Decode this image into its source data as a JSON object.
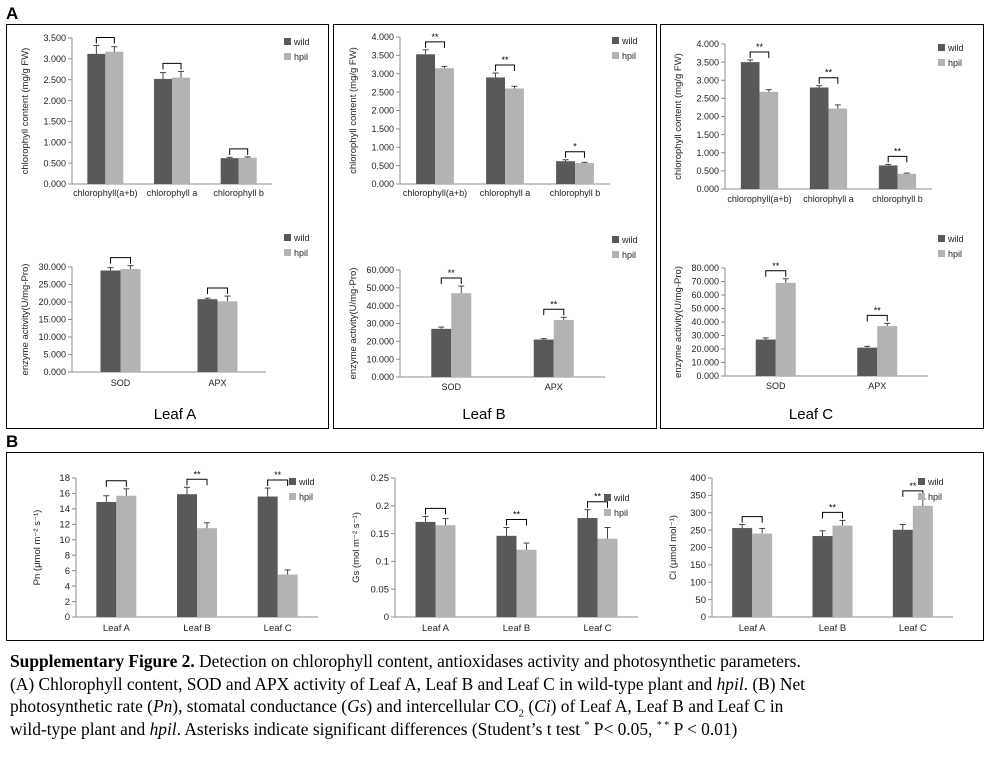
{
  "panel_labels": {
    "a": "A",
    "b": "B"
  },
  "leaf_titles": [
    "Leaf A",
    "Leaf B",
    "Leaf C"
  ],
  "colors": {
    "wild": "#595959",
    "hpil": "#b3b3b3",
    "axis": "#8c8c8c",
    "frame": "#000000"
  },
  "chart_data": [
    {
      "id": "chl-leafA",
      "type": "bar",
      "categories": [
        "chlorophyll(a+b)",
        "chlorophyll a",
        "chlorophyll b"
      ],
      "ylabel": "chlorophyll content (mg/g FW)",
      "ylim": [
        0,
        3.5
      ],
      "yticks": [
        "0.000",
        "0.500",
        "1.000",
        "1.500",
        "2.000",
        "2.500",
        "3.000",
        "3.500"
      ],
      "series": [
        {
          "name": "wild",
          "values": [
            3.12,
            2.52,
            0.62
          ],
          "errors": [
            0.2,
            0.15,
            0.02
          ]
        },
        {
          "name": "hpil",
          "values": [
            3.17,
            2.55,
            0.63
          ],
          "errors": [
            0.12,
            0.15,
            0.02
          ]
        }
      ],
      "significance": [
        "",
        "",
        ""
      ],
      "legend": "top-right"
    },
    {
      "id": "enz-leafA",
      "type": "bar",
      "categories": [
        "SOD",
        "APX"
      ],
      "ylabel": "enzyme activity(U/mg-Pro)",
      "ylim": [
        0,
        30
      ],
      "yticks": [
        "0.000",
        "5.000",
        "10.000",
        "15.000",
        "20.000",
        "25.000",
        "30.000"
      ],
      "series": [
        {
          "name": "wild",
          "values": [
            29.0,
            20.8
          ],
          "errors": [
            0.8,
            0.3
          ]
        },
        {
          "name": "hpil",
          "values": [
            29.4,
            20.2
          ],
          "errors": [
            1.0,
            1.5
          ]
        }
      ],
      "significance": [
        "",
        ""
      ],
      "legend": "top-right"
    },
    {
      "id": "chl-leafB",
      "type": "bar",
      "categories": [
        "chlorophyll(a+b)",
        "chlorophyll a",
        "chlorophyll b"
      ],
      "ylabel": "chlorophyll content (mg/g FW)",
      "ylim": [
        0,
        4
      ],
      "yticks": [
        "0.000",
        "0.500",
        "1.000",
        "1.500",
        "2.000",
        "2.500",
        "3.000",
        "3.500",
        "4.000"
      ],
      "series": [
        {
          "name": "wild",
          "values": [
            3.53,
            2.9,
            0.62
          ],
          "errors": [
            0.12,
            0.12,
            0.04
          ]
        },
        {
          "name": "hpil",
          "values": [
            3.15,
            2.6,
            0.57
          ],
          "errors": [
            0.05,
            0.06,
            0.02
          ]
        }
      ],
      "significance": [
        "**",
        "**",
        "*"
      ],
      "legend": "top-right"
    },
    {
      "id": "enz-leafB",
      "type": "bar",
      "categories": [
        "SOD",
        "APX"
      ],
      "ylabel": "enzyme activity(U/mg-Pro)",
      "ylim": [
        0,
        60
      ],
      "yticks": [
        "0.000",
        "10.000",
        "20.000",
        "30.000",
        "40.000",
        "50.000",
        "60.000"
      ],
      "series": [
        {
          "name": "wild",
          "values": [
            27.0,
            21.0
          ],
          "errors": [
            1.0,
            0.5
          ]
        },
        {
          "name": "hpil",
          "values": [
            47.0,
            32.0
          ],
          "errors": [
            4.0,
            1.5
          ]
        }
      ],
      "significance": [
        "**",
        "**"
      ],
      "legend": "top-right"
    },
    {
      "id": "chl-leafC",
      "type": "bar",
      "categories": [
        "chlorophyll(a+b)",
        "chlorophyll a",
        "chlorophyll b"
      ],
      "ylabel": "chlorophyll content (mg/g FW)",
      "ylim": [
        0,
        4
      ],
      "yticks": [
        "0.000",
        "0.500",
        "1.000",
        "1.500",
        "2.000",
        "2.500",
        "3.000",
        "3.500",
        "4.000"
      ],
      "series": [
        {
          "name": "wild",
          "values": [
            3.5,
            2.8,
            0.65
          ],
          "errors": [
            0.06,
            0.05,
            0.03
          ]
        },
        {
          "name": "hpil",
          "values": [
            2.68,
            2.22,
            0.42
          ],
          "errors": [
            0.06,
            0.1,
            0.02
          ]
        }
      ],
      "significance": [
        "**",
        "**",
        "**"
      ],
      "legend": "top-right"
    },
    {
      "id": "enz-leafC",
      "type": "bar",
      "categories": [
        "SOD",
        "APX"
      ],
      "ylabel": "enzyme activity(U/mg-Pro)",
      "ylim": [
        0,
        80
      ],
      "yticks": [
        "0.000",
        "10.000",
        "20.000",
        "30.000",
        "40.000",
        "50.000",
        "60.000",
        "70.000",
        "80.000"
      ],
      "series": [
        {
          "name": "wild",
          "values": [
            27.0,
            21.0
          ],
          "errors": [
            1.2,
            1.0
          ]
        },
        {
          "name": "hpil",
          "values": [
            69.0,
            37.0
          ],
          "errors": [
            3.0,
            2.0
          ]
        }
      ],
      "significance": [
        "**",
        "**"
      ],
      "legend": "top-right"
    },
    {
      "id": "pn",
      "type": "bar",
      "categories": [
        "Leaf A",
        "Leaf B",
        "Leaf C"
      ],
      "ylabel": "Pn (μmol m⁻² s⁻¹)",
      "ylim": [
        0,
        18
      ],
      "yticks": [
        "0",
        "2",
        "4",
        "6",
        "8",
        "10",
        "12",
        "14",
        "16",
        "18"
      ],
      "series": [
        {
          "name": "wild",
          "values": [
            14.9,
            15.9,
            15.6
          ],
          "errors": [
            0.8,
            0.9,
            1.1
          ]
        },
        {
          "name": "hpil",
          "values": [
            15.7,
            11.5,
            5.5
          ],
          "errors": [
            0.9,
            0.7,
            0.6
          ]
        }
      ],
      "significance": [
        "",
        "**",
        "**"
      ],
      "legend": "top-right"
    },
    {
      "id": "gs",
      "type": "bar",
      "categories": [
        "Leaf A",
        "Leaf B",
        "Leaf C"
      ],
      "ylabel": "Gs (mol m⁻² s⁻¹)",
      "ylim": [
        0,
        0.25
      ],
      "yticks": [
        "0",
        "0.05",
        "0.1",
        "0.15",
        "0.2",
        "0.25"
      ],
      "series": [
        {
          "name": "wild",
          "values": [
            0.171,
            0.146,
            0.178
          ],
          "errors": [
            0.01,
            0.015,
            0.015
          ]
        },
        {
          "name": "hpil",
          "values": [
            0.165,
            0.121,
            0.141
          ],
          "errors": [
            0.012,
            0.012,
            0.02
          ]
        }
      ],
      "significance": [
        "",
        "**",
        "**"
      ],
      "legend": "top-right"
    },
    {
      "id": "ci",
      "type": "bar",
      "categories": [
        "Leaf A",
        "Leaf B",
        "Leaf C"
      ],
      "ylabel": "Ci (μmol mol⁻¹)",
      "ylim": [
        0,
        400
      ],
      "yticks": [
        "0",
        "50",
        "100",
        "150",
        "200",
        "250",
        "300",
        "350",
        "400"
      ],
      "series": [
        {
          "name": "wild",
          "values": [
            256,
            233,
            251
          ],
          "errors": [
            10,
            15,
            15
          ]
        },
        {
          "name": "hpil",
          "values": [
            240,
            263,
            320
          ],
          "errors": [
            15,
            15,
            20
          ]
        }
      ],
      "significance": [
        "",
        "**",
        "**"
      ],
      "legend": "top-right"
    }
  ],
  "caption": {
    "title": "Supplementary Figure 2.",
    "title_rest": " Detection on chlorophyll content, antioxidases activity and photosynthetic parameters.",
    "line2_a": "(A) Chlorophyll content, SOD and APX activity of Leaf A, Leaf B and Leaf C in wild-type plant and ",
    "hpil": "hpil",
    "line2_b": ". (B) Net",
    "line3_a": "photosynthetic rate (",
    "pn": "Pn",
    "line3_b": "), stomatal conductance (",
    "gs": "Gs",
    "line3_c": ") and intercellular CO",
    "co2_sub": "2",
    "line3_d": " (",
    "ci": "Ci",
    "line3_e": ") of Leaf A, Leaf B and Leaf C  in",
    "line4_a": "wild-type plant and ",
    "line4_b": ". Asterisks indicate significant differences (Student’s t test ",
    "star1": "*",
    "line4_c": " P< 0.05, ",
    "star2": "* *",
    "line4_d": " P < 0.01)"
  }
}
